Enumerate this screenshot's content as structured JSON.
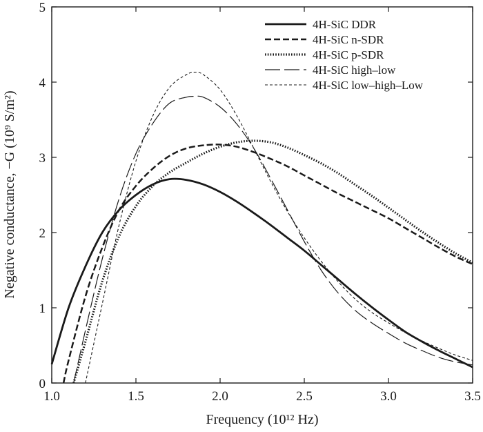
{
  "chart_data": {
    "type": "line",
    "title": "",
    "xlabel": "Frequency (10¹² Hz)",
    "ylabel": "Negative conductance, −G (10⁹ S/m²)",
    "xlim": [
      1.0,
      3.5
    ],
    "ylim": [
      0,
      5
    ],
    "xticks": [
      "1.0",
      "1.5",
      "2.0",
      "2.5",
      "3.0",
      "3.5"
    ],
    "yticks": [
      "0",
      "1",
      "2",
      "3",
      "4",
      "5"
    ],
    "grid": false,
    "legend_position": "top-right",
    "series": [
      {
        "name": "4H-SiC DDR",
        "line_style": "solid",
        "color": "#1a1a1a",
        "points": [
          [
            1.0,
            0.25
          ],
          [
            1.1,
            1.0
          ],
          [
            1.2,
            1.55
          ],
          [
            1.3,
            2.0
          ],
          [
            1.4,
            2.3
          ],
          [
            1.5,
            2.5
          ],
          [
            1.6,
            2.64
          ],
          [
            1.7,
            2.71
          ],
          [
            1.8,
            2.7
          ],
          [
            1.9,
            2.64
          ],
          [
            2.0,
            2.54
          ],
          [
            2.1,
            2.41
          ],
          [
            2.2,
            2.26
          ],
          [
            2.3,
            2.1
          ],
          [
            2.4,
            1.93
          ],
          [
            2.5,
            1.76
          ],
          [
            2.6,
            1.57
          ],
          [
            2.7,
            1.38
          ],
          [
            2.8,
            1.19
          ],
          [
            2.9,
            1.01
          ],
          [
            3.0,
            0.84
          ],
          [
            3.1,
            0.68
          ],
          [
            3.2,
            0.55
          ],
          [
            3.3,
            0.43
          ],
          [
            3.4,
            0.32
          ],
          [
            3.5,
            0.21
          ]
        ]
      },
      {
        "name": "4H-SiC n-SDR",
        "line_style": "dashed",
        "color": "#1a1a1a",
        "points": [
          [
            1.07,
            0.0
          ],
          [
            1.1,
            0.3
          ],
          [
            1.2,
            1.15
          ],
          [
            1.3,
            1.8
          ],
          [
            1.4,
            2.3
          ],
          [
            1.5,
            2.62
          ],
          [
            1.6,
            2.85
          ],
          [
            1.7,
            3.02
          ],
          [
            1.8,
            3.12
          ],
          [
            1.9,
            3.16
          ],
          [
            2.0,
            3.17
          ],
          [
            2.1,
            3.14
          ],
          [
            2.2,
            3.07
          ],
          [
            2.3,
            2.98
          ],
          [
            2.4,
            2.88
          ],
          [
            2.5,
            2.76
          ],
          [
            2.6,
            2.64
          ],
          [
            2.7,
            2.52
          ],
          [
            2.8,
            2.41
          ],
          [
            2.9,
            2.3
          ],
          [
            3.0,
            2.19
          ],
          [
            3.1,
            2.06
          ],
          [
            3.2,
            1.93
          ],
          [
            3.3,
            1.8
          ],
          [
            3.4,
            1.68
          ],
          [
            3.5,
            1.58
          ]
        ]
      },
      {
        "name": "4H-SiC p-SDR",
        "line_style": "dotted",
        "color": "#1a1a1a",
        "points": [
          [
            1.13,
            0.0
          ],
          [
            1.2,
            0.55
          ],
          [
            1.3,
            1.35
          ],
          [
            1.4,
            1.95
          ],
          [
            1.5,
            2.35
          ],
          [
            1.6,
            2.62
          ],
          [
            1.7,
            2.8
          ],
          [
            1.8,
            2.93
          ],
          [
            1.9,
            3.05
          ],
          [
            2.0,
            3.14
          ],
          [
            2.1,
            3.2
          ],
          [
            2.2,
            3.22
          ],
          [
            2.3,
            3.2
          ],
          [
            2.4,
            3.13
          ],
          [
            2.5,
            3.03
          ],
          [
            2.6,
            2.92
          ],
          [
            2.7,
            2.79
          ],
          [
            2.8,
            2.64
          ],
          [
            2.9,
            2.49
          ],
          [
            3.0,
            2.33
          ],
          [
            3.1,
            2.17
          ],
          [
            3.2,
            2.01
          ],
          [
            3.3,
            1.86
          ],
          [
            3.4,
            1.72
          ],
          [
            3.5,
            1.6
          ]
        ]
      },
      {
        "name": "4H-SiC high–low",
        "line_style": "long-dash",
        "color": "#1a1a1a",
        "points": [
          [
            1.13,
            0.0
          ],
          [
            1.2,
            0.7
          ],
          [
            1.3,
            1.65
          ],
          [
            1.4,
            2.45
          ],
          [
            1.5,
            3.05
          ],
          [
            1.6,
            3.45
          ],
          [
            1.7,
            3.72
          ],
          [
            1.8,
            3.8
          ],
          [
            1.85,
            3.81
          ],
          [
            1.9,
            3.8
          ],
          [
            2.0,
            3.67
          ],
          [
            2.1,
            3.44
          ],
          [
            2.2,
            3.12
          ],
          [
            2.3,
            2.72
          ],
          [
            2.4,
            2.3
          ],
          [
            2.5,
            1.88
          ],
          [
            2.6,
            1.5
          ],
          [
            2.7,
            1.2
          ],
          [
            2.8,
            0.97
          ],
          [
            2.9,
            0.8
          ],
          [
            3.0,
            0.66
          ],
          [
            3.1,
            0.53
          ],
          [
            3.2,
            0.43
          ],
          [
            3.3,
            0.34
          ],
          [
            3.4,
            0.28
          ],
          [
            3.5,
            0.24
          ]
        ]
      },
      {
        "name": "4H-SiC low–high–Low",
        "line_style": "short-dash",
        "color": "#1a1a1a",
        "points": [
          [
            1.2,
            0.0
          ],
          [
            1.3,
            1.05
          ],
          [
            1.4,
            2.1
          ],
          [
            1.5,
            2.95
          ],
          [
            1.6,
            3.55
          ],
          [
            1.7,
            3.93
          ],
          [
            1.8,
            4.1
          ],
          [
            1.85,
            4.13
          ],
          [
            1.9,
            4.1
          ],
          [
            2.0,
            3.9
          ],
          [
            2.1,
            3.55
          ],
          [
            2.2,
            3.12
          ],
          [
            2.3,
            2.68
          ],
          [
            2.4,
            2.28
          ],
          [
            2.5,
            1.93
          ],
          [
            2.6,
            1.62
          ],
          [
            2.7,
            1.35
          ],
          [
            2.8,
            1.12
          ],
          [
            2.9,
            0.94
          ],
          [
            3.0,
            0.8
          ],
          [
            3.1,
            0.67
          ],
          [
            3.2,
            0.56
          ],
          [
            3.3,
            0.46
          ],
          [
            3.4,
            0.37
          ],
          [
            3.5,
            0.3
          ]
        ]
      }
    ]
  }
}
